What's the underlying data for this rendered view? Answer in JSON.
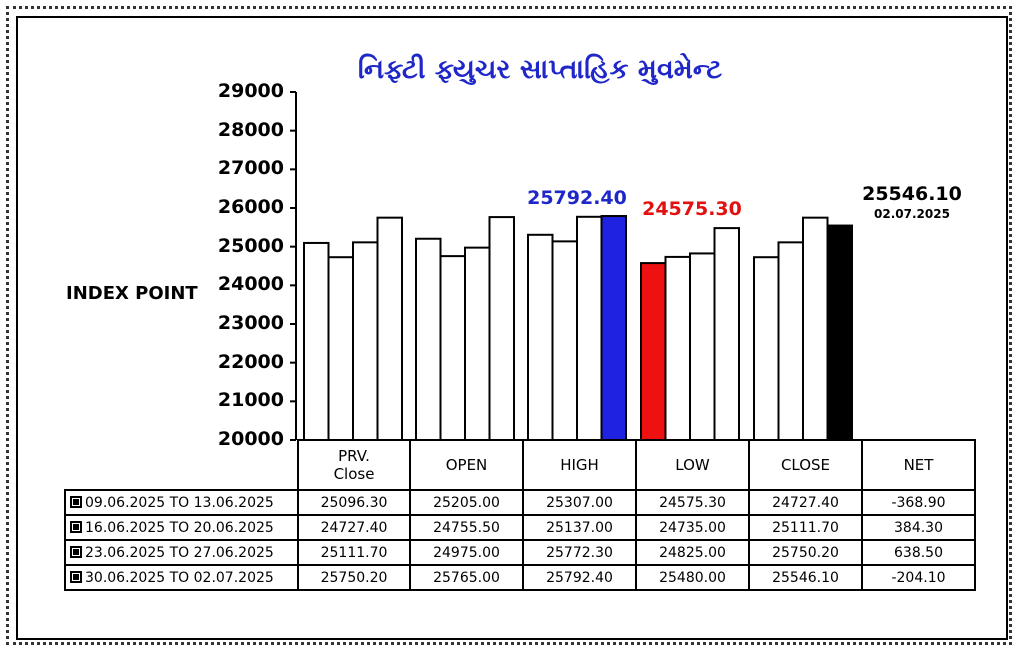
{
  "title": "નિફ્ટી ફ્યુચર સાપ્તાહિક મુવમેન્ટ",
  "ylabel": "INDEX POINT",
  "annotations": {
    "high": "25792.40",
    "low": "24575.30",
    "close": "25546.10",
    "close_date": "02.07.2025"
  },
  "colors": {
    "title": "#1f27c8",
    "high_bar": "#1f22e0",
    "low_bar": "#ee1111",
    "close_bar": "#000000",
    "default_bar": "#ffffff"
  },
  "table": {
    "headers": [
      "PRV. Close",
      "OPEN",
      "HIGH",
      "LOW",
      "CLOSE",
      "NET"
    ],
    "rows": [
      {
        "label": "09.06.2025 TO 13.06.2025",
        "cells": [
          "25096.30",
          "25205.00",
          "25307.00",
          "24575.30",
          "24727.40",
          "-368.90"
        ]
      },
      {
        "label": "16.06.2025 TO 20.06.2025",
        "cells": [
          "24727.40",
          "24755.50",
          "25137.00",
          "24735.00",
          "25111.70",
          "384.30"
        ]
      },
      {
        "label": "23.06.2025 TO 27.06.2025",
        "cells": [
          "25111.70",
          "24975.00",
          "25772.30",
          "24825.00",
          "25750.20",
          "638.50"
        ]
      },
      {
        "label": "30.06.2025 TO 02.07.2025",
        "cells": [
          "25750.20",
          "25765.00",
          "25792.40",
          "25480.00",
          "25546.10",
          "-204.10"
        ]
      }
    ]
  },
  "chart_data": {
    "type": "bar",
    "categories": [
      "PRV. Close",
      "OPEN",
      "HIGH",
      "LOW",
      "CLOSE"
    ],
    "series": [
      {
        "name": "09.06.2025 TO 13.06.2025",
        "values": [
          25096.3,
          25205.0,
          25307.0,
          24575.3,
          24727.4
        ]
      },
      {
        "name": "16.06.2025 TO 20.06.2025",
        "values": [
          24727.4,
          24755.5,
          25137.0,
          24735.0,
          25111.7
        ]
      },
      {
        "name": "23.06.2025 TO 27.06.2025",
        "values": [
          25111.7,
          24975.0,
          25772.3,
          24825.0,
          25750.2
        ]
      },
      {
        "name": "30.06.2025 TO 02.07.2025",
        "values": [
          25750.2,
          25765.0,
          25792.4,
          25480.0,
          25546.1
        ]
      }
    ],
    "highlight": [
      {
        "category": "HIGH",
        "series_index": 3,
        "color": "#1f22e0"
      },
      {
        "category": "LOW",
        "series_index": 0,
        "color": "#ee1111"
      },
      {
        "category": "CLOSE",
        "series_index": 3,
        "color": "#000000"
      }
    ],
    "yticks": [
      "29000",
      "28000",
      "27000",
      "26000",
      "25000",
      "24000",
      "23000",
      "22000",
      "21000",
      "20000"
    ],
    "ylim": [
      20000,
      29000
    ],
    "ylabel": "INDEX POINT",
    "grid": false,
    "legend": "table-below"
  }
}
